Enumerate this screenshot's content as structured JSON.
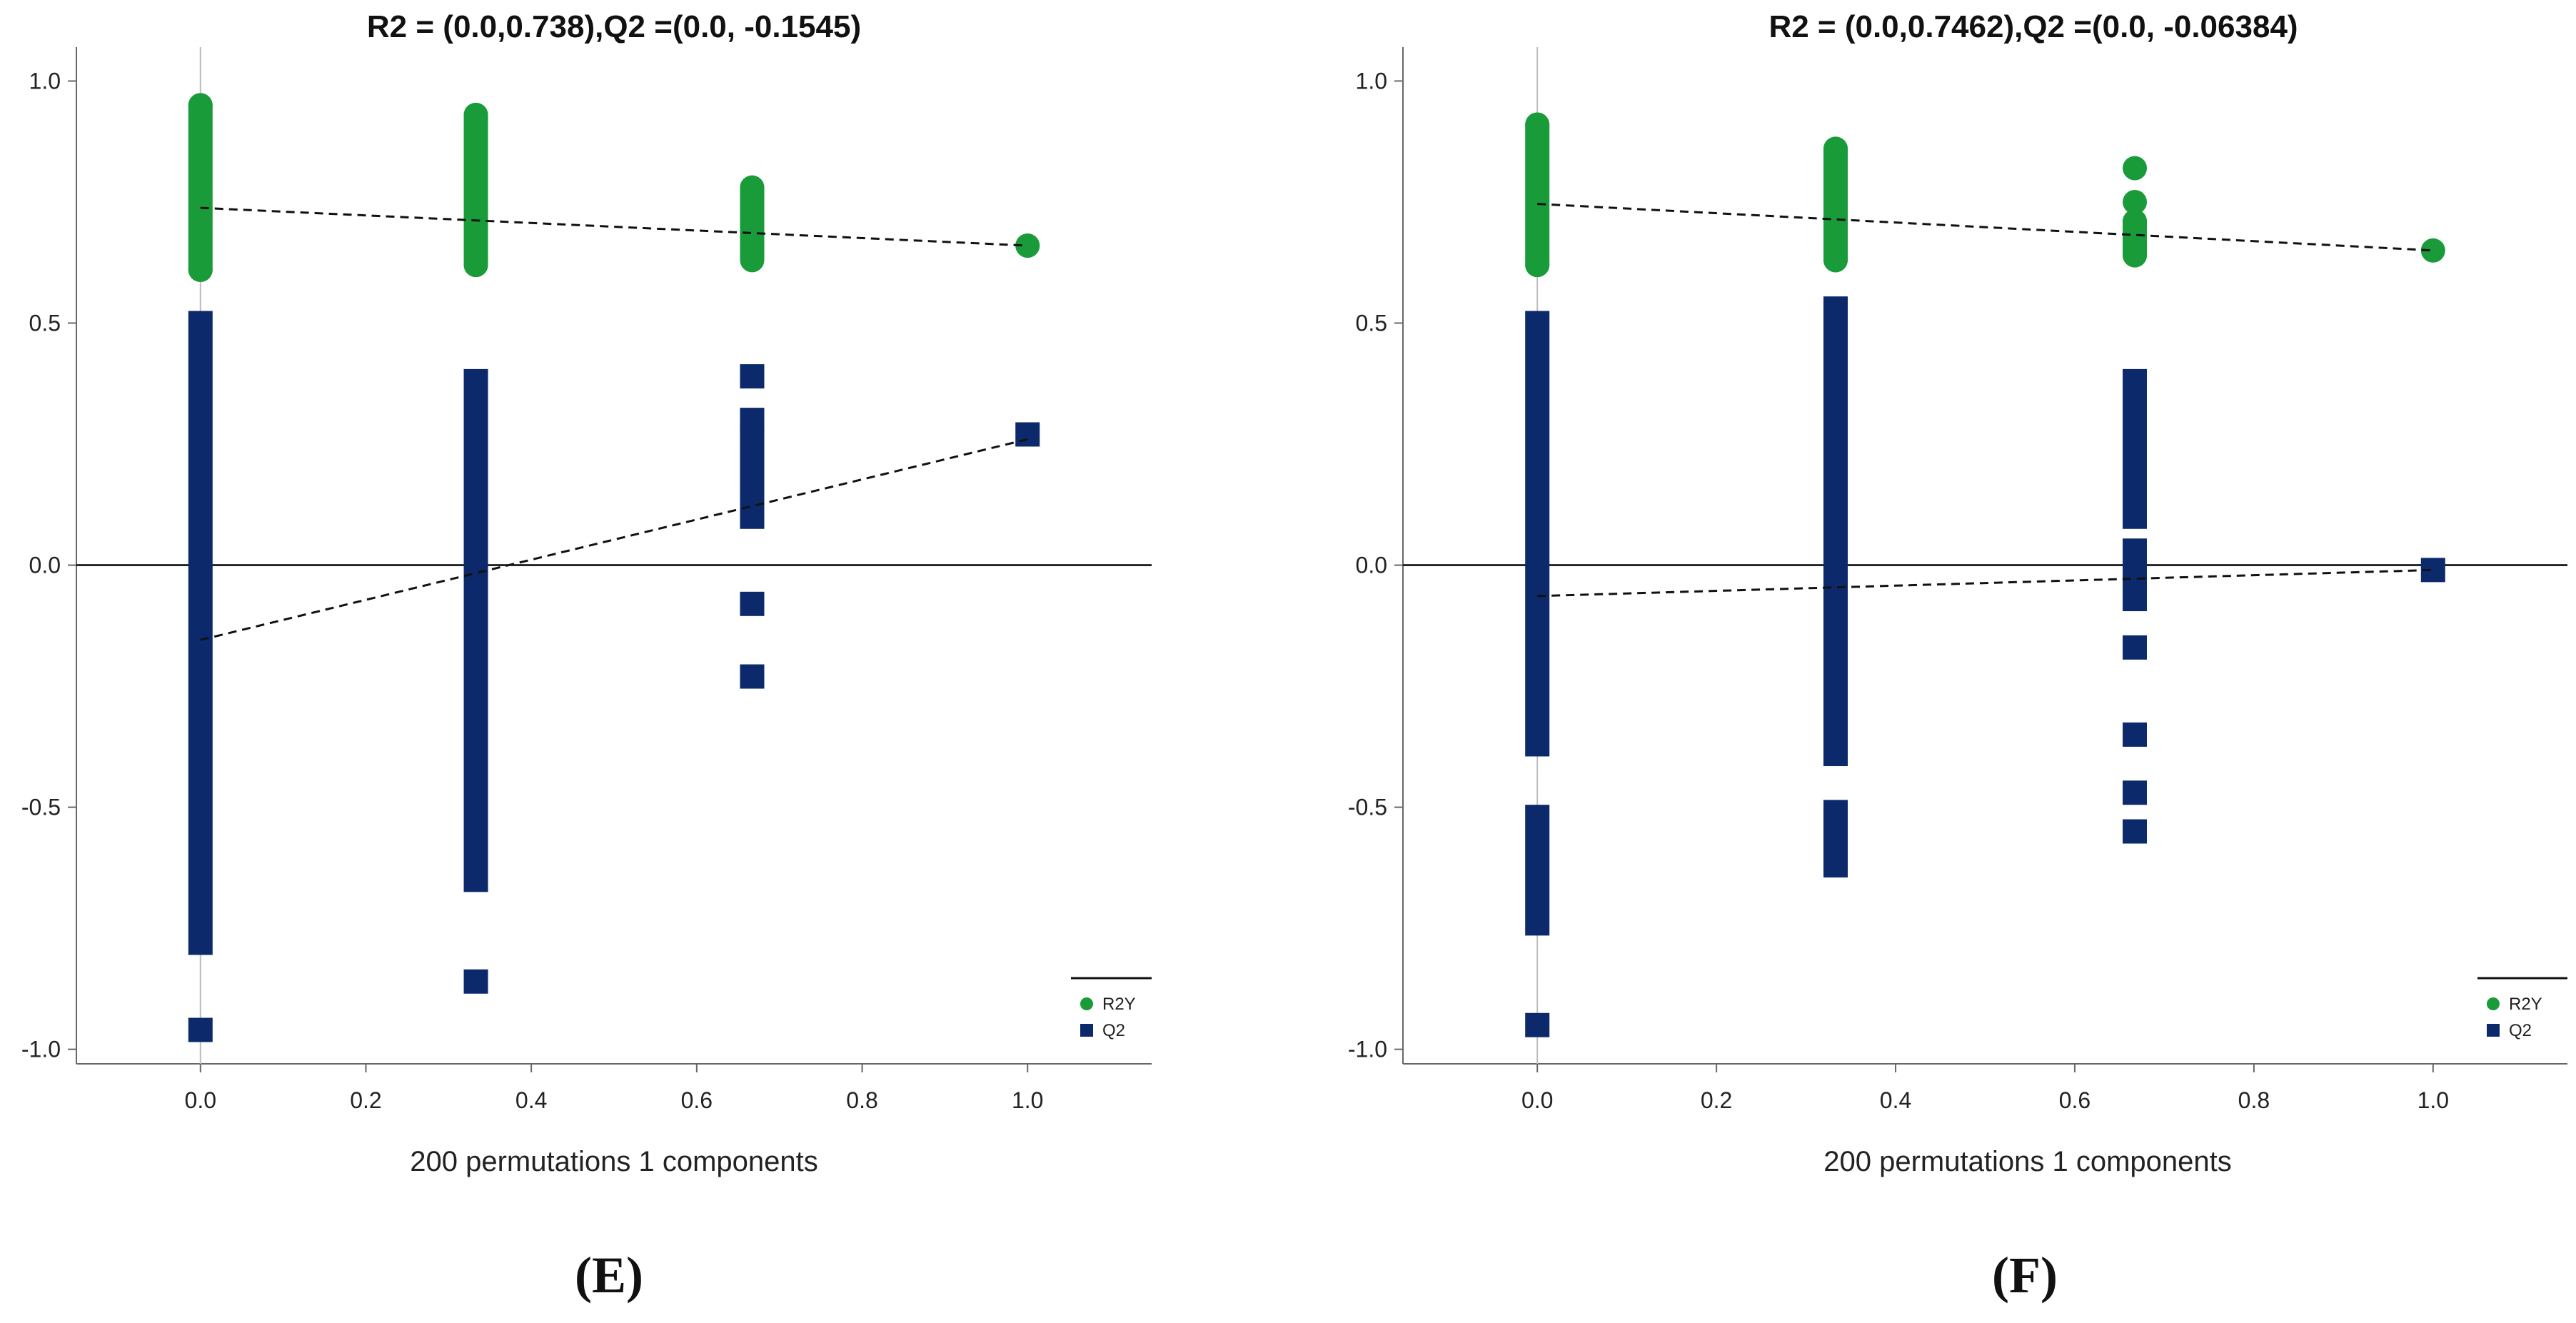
{
  "chart_data": [
    {
      "panel": "E",
      "label": "(E)",
      "type": "scatter",
      "title": "R2 = (0.0,0.738),Q2 =(0.0, -0.1545)",
      "xlabel": "200 permutations 1 components",
      "ylabel": "",
      "xlim": [
        -0.15,
        1.15
      ],
      "ylim": [
        -1.03,
        1.07
      ],
      "xticks": [
        "0.0",
        "0.2",
        "0.4",
        "0.6",
        "0.8",
        "1.0"
      ],
      "yticks": [
        "-1.0",
        "-0.5",
        "0.0",
        "0.5",
        "1.0"
      ],
      "legend_position": "bottom-right",
      "colors": {
        "R2Y": "#1a9b3a",
        "Q2": "#0c2a6b"
      },
      "series": [
        {
          "name": "R2Y",
          "marker": "circle",
          "segments": [
            {
              "x": 0.0,
              "from": 0.61,
              "to": 0.95
            },
            {
              "x": 0.333,
              "from": 0.62,
              "to": 0.93
            },
            {
              "x": 0.667,
              "from": 0.63,
              "to": 0.78
            },
            {
              "x": 1.0,
              "from": 0.66,
              "to": 0.66
            }
          ],
          "points": [
            {
              "x": 0.0,
              "y": 0.95
            },
            {
              "x": 0.0,
              "y": 0.61
            },
            {
              "x": 0.333,
              "y": 0.93
            },
            {
              "x": 0.333,
              "y": 0.62
            },
            {
              "x": 0.667,
              "y": 0.78
            },
            {
              "x": 0.667,
              "y": 0.76
            },
            {
              "x": 0.667,
              "y": 0.69
            },
            {
              "x": 0.667,
              "y": 0.67
            },
            {
              "x": 0.667,
              "y": 0.64
            },
            {
              "x": 1.0,
              "y": 0.66
            }
          ],
          "regression": {
            "x0": 0.0,
            "y0": 0.738,
            "x1": 1.0,
            "y1": 0.66
          }
        },
        {
          "name": "Q2",
          "marker": "square",
          "segments": [
            {
              "x": 0.0,
              "from": -0.78,
              "to": 0.5
            },
            {
              "x": 0.333,
              "from": -0.65,
              "to": 0.38
            },
            {
              "x": 0.667,
              "from": 0.1,
              "to": 0.26
            }
          ],
          "points": [
            {
              "x": 0.0,
              "y": -0.96
            },
            {
              "x": 0.333,
              "y": -0.86
            },
            {
              "x": 0.667,
              "y": 0.39
            },
            {
              "x": 0.667,
              "y": 0.3
            },
            {
              "x": 0.667,
              "y": -0.08
            },
            {
              "x": 0.667,
              "y": -0.23
            },
            {
              "x": 1.0,
              "y": 0.27
            }
          ],
          "regression": {
            "x0": 0.0,
            "y0": -0.1545,
            "x1": 1.0,
            "y1": 0.26
          }
        }
      ]
    },
    {
      "panel": "F",
      "label": "(F)",
      "type": "scatter",
      "title": "R2 = (0.0,0.7462),Q2 =(0.0, -0.06384)",
      "xlabel": "200 permutations 1 components",
      "ylabel": "",
      "xlim": [
        -0.15,
        1.15
      ],
      "ylim": [
        -1.03,
        1.07
      ],
      "xticks": [
        "0.0",
        "0.2",
        "0.4",
        "0.6",
        "0.8",
        "1.0"
      ],
      "yticks": [
        "-1.0",
        "-0.5",
        "0.0",
        "0.5",
        "1.0"
      ],
      "legend_position": "bottom-right",
      "colors": {
        "R2Y": "#1a9b3a",
        "Q2": "#0c2a6b"
      },
      "series": [
        {
          "name": "R2Y",
          "marker": "circle",
          "segments": [
            {
              "x": 0.0,
              "from": 0.62,
              "to": 0.91
            },
            {
              "x": 0.333,
              "from": 0.63,
              "to": 0.86
            },
            {
              "x": 0.667,
              "from": 0.64,
              "to": 0.71
            }
          ],
          "points": [
            {
              "x": 0.0,
              "y": 0.91
            },
            {
              "x": 0.0,
              "y": 0.62
            },
            {
              "x": 0.333,
              "y": 0.86
            },
            {
              "x": 0.333,
              "y": 0.63
            },
            {
              "x": 0.667,
              "y": 0.82
            },
            {
              "x": 0.667,
              "y": 0.75
            },
            {
              "x": 0.667,
              "y": 0.71
            },
            {
              "x": 0.667,
              "y": 0.64
            },
            {
              "x": 1.0,
              "y": 0.65
            }
          ],
          "regression": {
            "x0": 0.0,
            "y0": 0.7462,
            "x1": 1.0,
            "y1": 0.65
          }
        },
        {
          "name": "Q2",
          "marker": "square",
          "segments": [
            {
              "x": 0.0,
              "from": -0.37,
              "to": 0.5
            },
            {
              "x": 0.0,
              "from": -0.74,
              "to": -0.52
            },
            {
              "x": 0.333,
              "from": -0.39,
              "to": 0.53
            },
            {
              "x": 0.333,
              "from": -0.62,
              "to": -0.51
            },
            {
              "x": 0.667,
              "from": 0.1,
              "to": 0.38
            },
            {
              "x": 0.667,
              "from": -0.07,
              "to": 0.03
            }
          ],
          "points": [
            {
              "x": 0.0,
              "y": -0.95
            },
            {
              "x": 0.667,
              "y": -0.17
            },
            {
              "x": 0.667,
              "y": -0.35
            },
            {
              "x": 0.667,
              "y": -0.47
            },
            {
              "x": 0.667,
              "y": -0.55
            },
            {
              "x": 1.0,
              "y": -0.01
            }
          ],
          "regression": {
            "x0": 0.0,
            "y0": -0.06384,
            "x1": 1.0,
            "y1": -0.01
          }
        }
      ]
    }
  ]
}
